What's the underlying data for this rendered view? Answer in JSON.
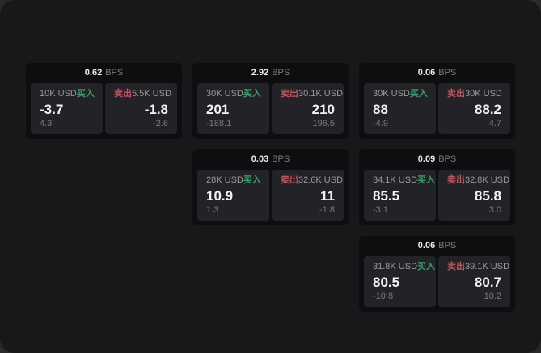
{
  "labels": {
    "buy": "买入",
    "sell": "卖出",
    "bps_unit": "BPS"
  },
  "colors": {
    "buy_green": "#3d9e6b",
    "sell_red": "#bb5560"
  },
  "cards": [
    {
      "bps": "0.62",
      "row": 1,
      "col": 1,
      "buy": {
        "amount": "10K USD",
        "value": "-3.7",
        "change": "4.3"
      },
      "sell": {
        "amount": "5.5K USD",
        "value": "-1.8",
        "change": "-2.6"
      }
    },
    {
      "bps": "2.92",
      "row": 1,
      "col": 2,
      "buy": {
        "amount": "30K USD",
        "value": "201",
        "change": "-188.1"
      },
      "sell": {
        "amount": "30.1K USD",
        "value": "210",
        "change": "196.5"
      }
    },
    {
      "bps": "0.06",
      "row": 1,
      "col": 3,
      "buy": {
        "amount": "30K USD",
        "value": "88",
        "change": "-4.9"
      },
      "sell": {
        "amount": "30K USD",
        "value": "88.2",
        "change": "4.7"
      }
    },
    {
      "bps": "0.03",
      "row": 2,
      "col": 2,
      "buy": {
        "amount": "28K USD",
        "value": "10.9",
        "change": "1.3"
      },
      "sell": {
        "amount": "32.6K USD",
        "value": "11",
        "change": "-1.8"
      }
    },
    {
      "bps": "0.09",
      "row": 2,
      "col": 3,
      "buy": {
        "amount": "34.1K USD",
        "value": "85.5",
        "change": "-3.1"
      },
      "sell": {
        "amount": "32.8K USD",
        "value": "85.8",
        "change": "3.0"
      }
    },
    {
      "bps": "0.06",
      "row": 3,
      "col": 3,
      "buy": {
        "amount": "31.8K USD",
        "value": "80.5",
        "change": "-10.8"
      },
      "sell": {
        "amount": "39.1K USD",
        "value": "80.7",
        "change": "10.2"
      }
    }
  ]
}
